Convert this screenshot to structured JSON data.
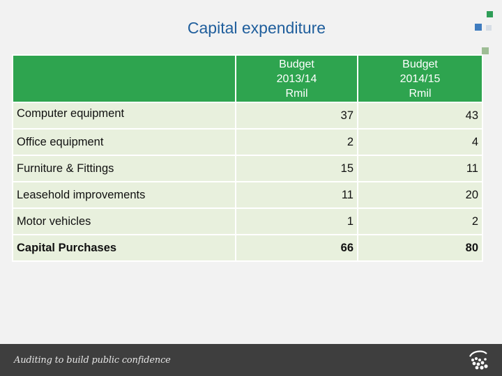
{
  "title": "Capital expenditure",
  "table": {
    "columns": [
      {
        "line1": "Budget",
        "line2": "2013/14",
        "line3": "Rmil"
      },
      {
        "line1": "Budget",
        "line2": "2014/15",
        "line3": "Rmil"
      }
    ],
    "rows": [
      {
        "label": "Computer equipment",
        "b1": "37",
        "b2": "43"
      },
      {
        "label": "Office equipment",
        "b1": "2",
        "b2": "4"
      },
      {
        "label": "Furniture & Fittings",
        "b1": "15",
        "b2": "11"
      },
      {
        "label": "Leasehold improvements",
        "b1": "11",
        "b2": "20"
      },
      {
        "label": "Motor vehicles",
        "b1": "1",
        "b2": "2"
      },
      {
        "label": "Capital Purchases",
        "b1": "66",
        "b2": "80"
      }
    ]
  },
  "footer": {
    "tagline": "Auditing to build public confidence",
    "logo_icon": "agsa-logo-icon"
  },
  "colors": {
    "header_green": "#2ea44f",
    "row_fill": "#e8f0dd",
    "title_blue": "#1f5e9c",
    "footer_bg": "#3e3e3e"
  }
}
